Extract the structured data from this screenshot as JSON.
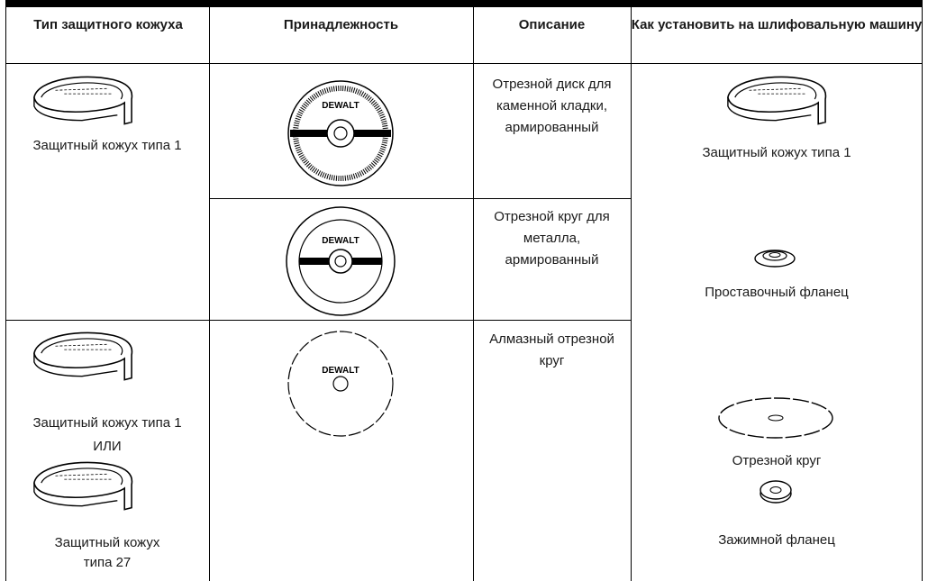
{
  "table": {
    "headers": [
      "Тип защитного кожуха",
      "Принадлежность",
      "Описание",
      "Как установить на шлифовальную машину"
    ],
    "guards": {
      "row1": [
        "Защитный кожух типа 1"
      ],
      "row3": [
        "Защитный кожух типа 1",
        "ИЛИ",
        "Защитный кожух типа 27"
      ]
    },
    "accessories": [
      {
        "brand": "DEWALT",
        "description": "Отрезной диск для каменной кладки, армированный"
      },
      {
        "brand": "DEWALT",
        "description": "Отрезной круг для металла, армированный"
      },
      {
        "brand": "DEWALT",
        "description": "Алмазный отрезной круг"
      }
    ],
    "installation": [
      "Защитный кожух типа 1",
      "Проставочный фланец",
      "Отрезной круг",
      "Зажимной фланец"
    ]
  }
}
